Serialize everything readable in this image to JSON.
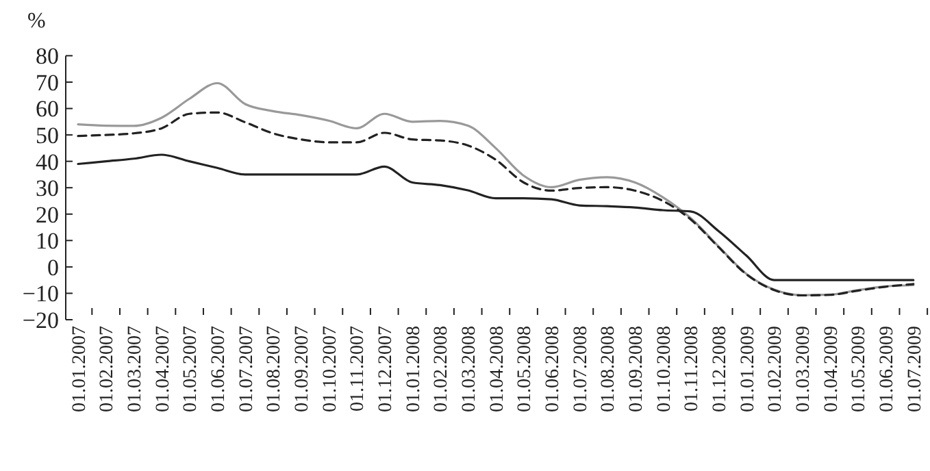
{
  "chart_data": {
    "type": "line",
    "ylabel": "%",
    "categories": [
      "01.01.2007",
      "01.02.2007",
      "01.03.2007",
      "01.04.2007",
      "01.05.2007",
      "01.06.2007",
      "01.07.2007",
      "01.08.2007",
      "01.09.2007",
      "01.10.2007",
      "01.11.2007",
      "01.12.2007",
      "01.01.2008",
      "01.02.2008",
      "01.03.2008",
      "01.04.2008",
      "01.05.2008",
      "01.06.2008",
      "01.07.2008",
      "01.08.2008",
      "01.09.2008",
      "01.10.2008",
      "01.11.2008",
      "01.12.2008",
      "01.01.2009",
      "01.02.2009",
      "01.03.2009",
      "01.04.2009",
      "01.05.2009",
      "01.06.2009",
      "01.07.2009"
    ],
    "ylim": [
      -20,
      80
    ],
    "yticks": [
      -20,
      -10,
      0,
      10,
      20,
      30,
      40,
      50,
      60,
      70,
      80
    ],
    "grid": false,
    "marker": "none",
    "series": [
      {
        "color": "#999999",
        "line_style": "solid",
        "values": [
          54,
          53.5,
          53.4,
          56.5,
          63.7,
          69.6,
          61.7,
          59,
          57.5,
          55.4,
          52.5,
          58,
          55,
          55.3,
          53.5,
          45,
          34.6,
          30.2,
          33,
          34,
          32,
          26.4,
          18.5,
          7.8,
          -2.6,
          -8.6,
          -10.7,
          -10.5,
          -8.8,
          -7.4,
          -6.9
        ]
      },
      {
        "color": "#222222",
        "line_style": "dashed",
        "values": [
          49.6,
          50,
          50.6,
          52.5,
          58,
          58.5,
          54.8,
          50.6,
          48.3,
          47.2,
          47.2,
          50.8,
          48.3,
          47.9,
          46,
          40.6,
          32,
          28.9,
          29.9,
          30.2,
          28.9,
          25,
          18,
          7.5,
          -2.8,
          -8.8,
          -10.8,
          -10.6,
          -9,
          -7.5,
          -6.5
        ]
      },
      {
        "color": "#222222",
        "line_style": "solid",
        "values": [
          39,
          40,
          41,
          42.5,
          40,
          37.5,
          35,
          35,
          35,
          35,
          35,
          38,
          32,
          31,
          29,
          26,
          26,
          25.6,
          23.3,
          23,
          22.5,
          21.5,
          21,
          13.6,
          4.3,
          -5,
          -5,
          -5,
          -5,
          -5,
          -5
        ]
      }
    ]
  }
}
